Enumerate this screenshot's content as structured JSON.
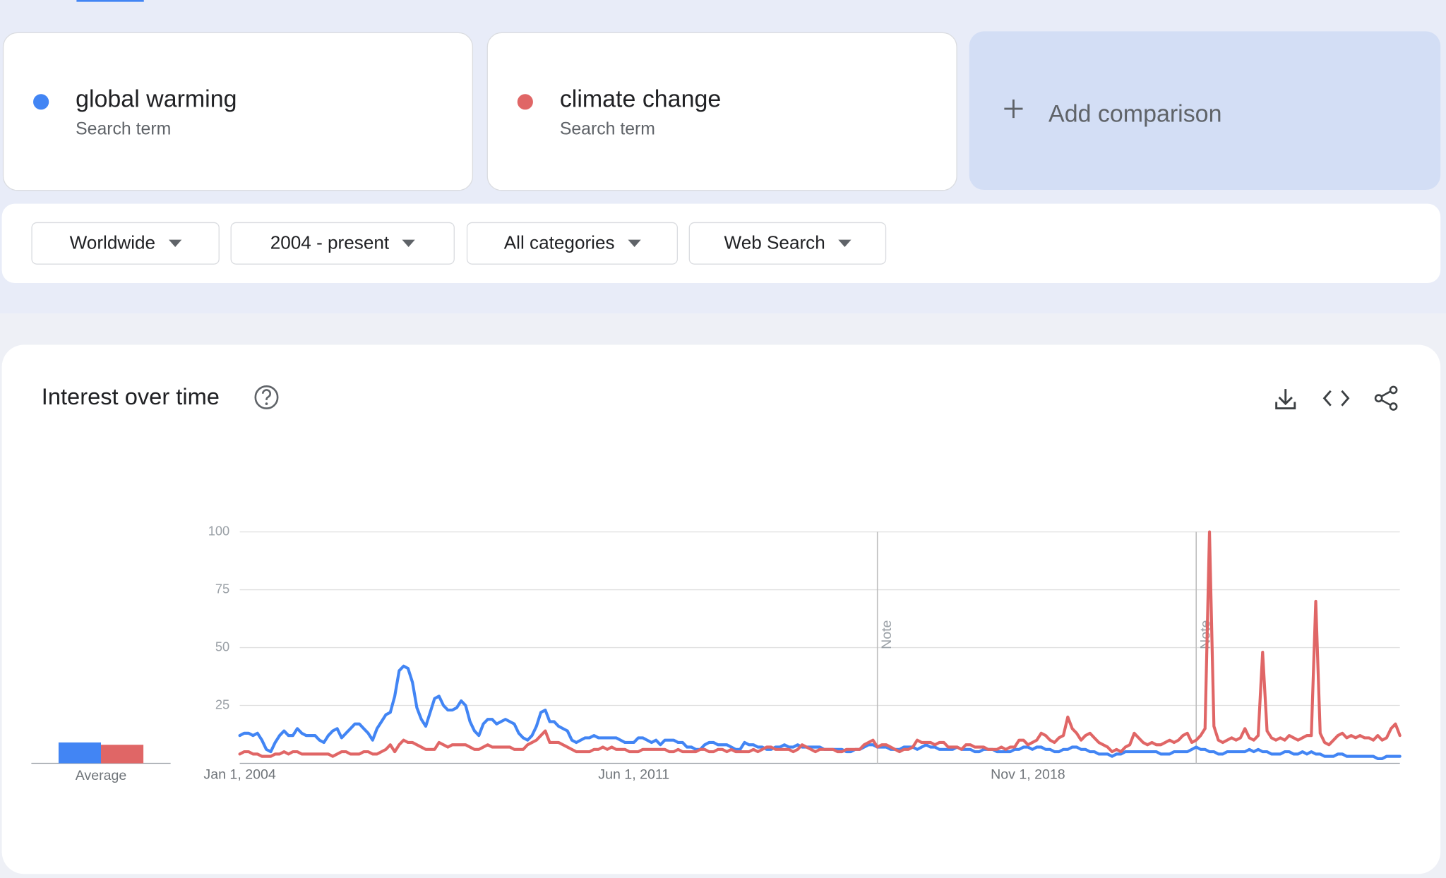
{
  "header": {
    "add_comparison": "Add comparison"
  },
  "filters": [
    "Worldwide",
    "2004 - present",
    "All categories",
    "Web Search"
  ],
  "chart_data": {
    "type": "line",
    "title": "Interest over time",
    "average_label": "Average",
    "ylim": [
      0,
      100
    ],
    "yticks": [
      25,
      50,
      75,
      100
    ],
    "grid": true,
    "annotations": [
      {
        "at": 144,
        "text": "Note"
      },
      {
        "at": 216,
        "text": "Note"
      }
    ],
    "categories": [
      "Jan 1, 2004",
      null,
      null,
      null,
      null,
      null,
      null,
      null,
      null,
      null,
      null,
      null,
      null,
      null,
      null,
      null,
      null,
      null,
      null,
      null,
      null,
      null,
      null,
      null,
      null,
      null,
      null,
      null,
      null,
      null,
      null,
      null,
      null,
      null,
      null,
      null,
      null,
      null,
      null,
      null,
      null,
      null,
      null,
      null,
      null,
      null,
      null,
      null,
      null,
      null,
      null,
      null,
      null,
      null,
      null,
      null,
      null,
      null,
      null,
      null,
      null,
      null,
      null,
      null,
      null,
      null,
      null,
      null,
      null,
      null,
      null,
      null,
      null,
      null,
      null,
      null,
      null,
      null,
      null,
      null,
      null,
      null,
      null,
      null,
      null,
      null,
      null,
      null,
      null,
      "Jun 1, 2011",
      null,
      null,
      null,
      null,
      null,
      null,
      null,
      null,
      null,
      null,
      null,
      null,
      null,
      null,
      null,
      null,
      null,
      null,
      null,
      null,
      null,
      null,
      null,
      null,
      null,
      null,
      null,
      null,
      null,
      null,
      null,
      null,
      null,
      null,
      null,
      null,
      null,
      null,
      null,
      null,
      null,
      null,
      null,
      null,
      null,
      null,
      null,
      null,
      null,
      null,
      null,
      null,
      null,
      null,
      null,
      null,
      null,
      null,
      null,
      null,
      null,
      null,
      null,
      null,
      null,
      null,
      null,
      null,
      null,
      null,
      null,
      null,
      null,
      null,
      null,
      null,
      null,
      null,
      null,
      null,
      null,
      null,
      null,
      null,
      null,
      null,
      null,
      null,
      "Nov 1, 2018",
      null,
      null,
      null,
      null,
      null,
      null,
      null,
      null,
      null,
      null,
      null,
      null,
      null,
      null,
      null,
      null,
      null,
      null,
      null,
      null,
      null,
      null,
      null,
      null,
      null,
      null,
      null,
      null,
      null,
      null,
      null,
      null,
      null,
      null,
      null,
      null,
      null,
      null,
      null,
      null,
      null,
      null,
      null,
      null,
      null,
      null,
      null,
      null,
      null,
      null,
      null,
      null,
      null,
      null,
      null,
      null,
      null,
      null,
      null,
      null,
      null,
      null,
      null,
      null,
      null,
      null,
      null,
      null,
      null,
      null,
      null,
      null,
      null,
      null,
      null,
      null,
      null,
      null,
      null,
      null,
      null,
      null,
      null,
      null
    ],
    "series": [
      {
        "name": "global warming",
        "subtitle": "Search term",
        "color": "#4285f4",
        "average": 9,
        "values": [
          12,
          13,
          13,
          12,
          13,
          10,
          6,
          5,
          9,
          12,
          14,
          12,
          12,
          15,
          13,
          12,
          12,
          12,
          10,
          9,
          12,
          14,
          15,
          11,
          13,
          15,
          17,
          17,
          15,
          13,
          10,
          15,
          18,
          21,
          22,
          29,
          40,
          42,
          41,
          35,
          24,
          19,
          16,
          22,
          28,
          29,
          25,
          23,
          23,
          24,
          27,
          25,
          18,
          14,
          12,
          17,
          19,
          19,
          17,
          18,
          19,
          18,
          17,
          13,
          11,
          10,
          12,
          16,
          22,
          23,
          18,
          18,
          16,
          15,
          14,
          10,
          9,
          10,
          11,
          11,
          12,
          11,
          11,
          11,
          11,
          11,
          10,
          9,
          9,
          9,
          11,
          11,
          10,
          9,
          10,
          8,
          10,
          10,
          10,
          9,
          9,
          7,
          7,
          6,
          6,
          8,
          9,
          9,
          8,
          8,
          8,
          7,
          6,
          6,
          9,
          8,
          8,
          7,
          7,
          6,
          6,
          7,
          7,
          8,
          7,
          7,
          8,
          7,
          7,
          7,
          7,
          7,
          6,
          6,
          6,
          6,
          6,
          5,
          5,
          6,
          6,
          7,
          8,
          8,
          7,
          7,
          7,
          6,
          6,
          6,
          7,
          7,
          7,
          6,
          7,
          8,
          7,
          7,
          6,
          6,
          6,
          6,
          7,
          6,
          6,
          6,
          5,
          5,
          6,
          6,
          6,
          5,
          5,
          5,
          5,
          6,
          6,
          7,
          7,
          6,
          7,
          7,
          6,
          6,
          5,
          5,
          6,
          6,
          7,
          7,
          6,
          6,
          5,
          5,
          4,
          4,
          4,
          3,
          4,
          4,
          5,
          5,
          5,
          5,
          5,
          5,
          5,
          5,
          4,
          4,
          4,
          5,
          5,
          5,
          5,
          6,
          7,
          6,
          6,
          5,
          5,
          4,
          4,
          5,
          5,
          5,
          5,
          5,
          6,
          5,
          6,
          5,
          5,
          4,
          4,
          4,
          5,
          5,
          4,
          4,
          5,
          4,
          5,
          4,
          4,
          3,
          3,
          3,
          4,
          4,
          3,
          3,
          3,
          3,
          3,
          3,
          3,
          2,
          2,
          3,
          3,
          3,
          3
        ]
      },
      {
        "name": "climate change",
        "subtitle": "Search term",
        "color": "#e06666",
        "average": 8,
        "values": [
          4,
          5,
          5,
          4,
          4,
          3,
          3,
          3,
          4,
          4,
          5,
          4,
          5,
          5,
          4,
          4,
          4,
          4,
          4,
          4,
          4,
          3,
          4,
          5,
          5,
          4,
          4,
          4,
          5,
          5,
          4,
          4,
          5,
          6,
          8,
          5,
          8,
          10,
          9,
          9,
          8,
          7,
          6,
          6,
          6,
          9,
          8,
          7,
          8,
          8,
          8,
          8,
          7,
          6,
          6,
          7,
          8,
          7,
          7,
          7,
          7,
          7,
          6,
          6,
          6,
          8,
          9,
          10,
          12,
          14,
          9,
          9,
          9,
          8,
          7,
          6,
          5,
          5,
          5,
          5,
          6,
          6,
          7,
          6,
          7,
          6,
          6,
          6,
          5,
          5,
          5,
          6,
          6,
          6,
          6,
          6,
          6,
          5,
          5,
          6,
          5,
          5,
          5,
          5,
          6,
          6,
          5,
          5,
          6,
          6,
          5,
          6,
          5,
          5,
          5,
          5,
          6,
          5,
          6,
          7,
          7,
          6,
          6,
          6,
          6,
          5,
          6,
          8,
          7,
          6,
          5,
          6,
          6,
          6,
          6,
          5,
          5,
          6,
          6,
          6,
          6,
          8,
          9,
          10,
          7,
          8,
          8,
          7,
          6,
          5,
          6,
          6,
          7,
          10,
          9,
          9,
          9,
          8,
          9,
          9,
          7,
          7,
          7,
          6,
          8,
          8,
          7,
          7,
          7,
          6,
          6,
          6,
          7,
          6,
          7,
          7,
          10,
          10,
          8,
          9,
          10,
          13,
          12,
          10,
          9,
          11,
          12,
          20,
          15,
          13,
          10,
          12,
          13,
          11,
          9,
          8,
          7,
          5,
          6,
          5,
          7,
          8,
          13,
          11,
          9,
          8,
          9,
          8,
          8,
          9,
          10,
          9,
          10,
          12,
          13,
          9,
          10,
          12,
          15,
          100,
          16,
          10,
          9,
          10,
          11,
          10,
          11,
          15,
          11,
          10,
          12,
          48,
          14,
          11,
          10,
          11,
          10,
          12,
          11,
          10,
          11,
          12,
          12,
          70,
          13,
          9,
          8,
          10,
          12,
          13,
          11,
          12,
          11,
          12,
          11,
          11,
          10,
          12,
          10,
          11,
          15,
          17,
          12
        ]
      }
    ]
  }
}
